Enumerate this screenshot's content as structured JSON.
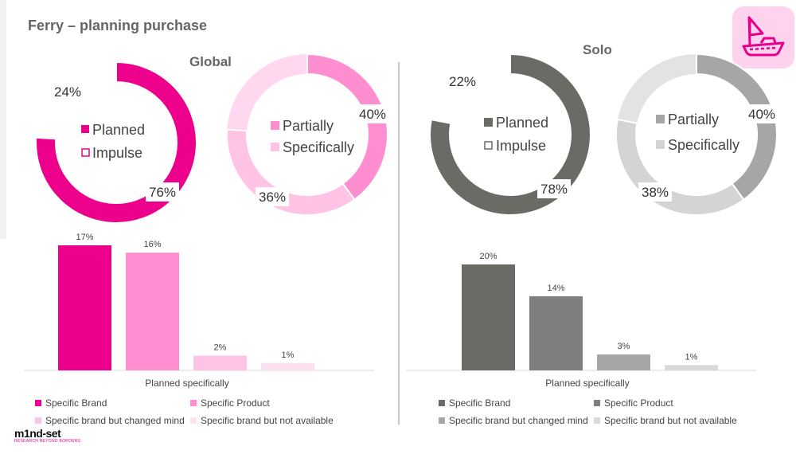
{
  "page_title": "Ferry – planning purchase",
  "colors": {
    "global": [
      "#ec008c",
      "#ff8ed1",
      "#ffc3e6",
      "#fce0ef"
    ],
    "solo": [
      "#6b6b66",
      "#7f7f7f",
      "#a6a6a6",
      "#d9d9d9"
    ],
    "logo_accent": "#e8008c"
  },
  "logo": {
    "name": "m1nd-set",
    "tagline": "RESEARCH BEYOND BORDERS"
  },
  "chart_data": [
    {
      "type": "pie",
      "id": "global-planned-impulse",
      "title": "Global",
      "categories": [
        "Planned",
        "Impulse"
      ],
      "values": [
        76,
        24
      ],
      "labels": [
        "76%",
        "24%"
      ],
      "colors": [
        "#ec008c",
        "#ffffff"
      ]
    },
    {
      "type": "pie",
      "id": "global-partially-specifically",
      "title": "",
      "categories": [
        "Partially",
        "Specifically"
      ],
      "values": [
        40,
        36
      ],
      "labels": [
        "40%",
        "36%"
      ],
      "colors": [
        "#ff8ed1",
        "#ffc3e6"
      ]
    },
    {
      "type": "bar",
      "id": "global-bars",
      "xlabel": "Planned specifically",
      "categories": [
        "Specific Brand",
        "Specific Product",
        "Specific brand but changed mind",
        "Specific brand but not available"
      ],
      "values": [
        17,
        16,
        2,
        1
      ],
      "labels": [
        "17%",
        "16%",
        "2%",
        "1%"
      ],
      "ylim": [
        0,
        20
      ],
      "colors": [
        "#ec008c",
        "#ff8ed1",
        "#ffc3e6",
        "#fce0ef"
      ]
    },
    {
      "type": "pie",
      "id": "solo-planned-impulse",
      "title": "Solo",
      "categories": [
        "Planned",
        "Impulse"
      ],
      "values": [
        78,
        22
      ],
      "labels": [
        "78%",
        "22%"
      ],
      "colors": [
        "#6b6b66",
        "#ffffff"
      ]
    },
    {
      "type": "pie",
      "id": "solo-partially-specifically",
      "title": "",
      "categories": [
        "Partially",
        "Specifically"
      ],
      "values": [
        40,
        38
      ],
      "labels": [
        "40%",
        "38%"
      ],
      "colors": [
        "#a6a6a6",
        "#d4d4d4"
      ]
    },
    {
      "type": "bar",
      "id": "solo-bars",
      "xlabel": "Planned specifically",
      "categories": [
        "Specific Brand",
        "Specific Product",
        "Specific brand but changed mind",
        "Specific brand but not available"
      ],
      "values": [
        20,
        14,
        3,
        1
      ],
      "labels": [
        "20%",
        "14%",
        "3%",
        "1%"
      ],
      "ylim": [
        0,
        20
      ],
      "colors": [
        "#6b6b66",
        "#7f7f7f",
        "#a6a6a6",
        "#d9d9d9"
      ]
    }
  ]
}
